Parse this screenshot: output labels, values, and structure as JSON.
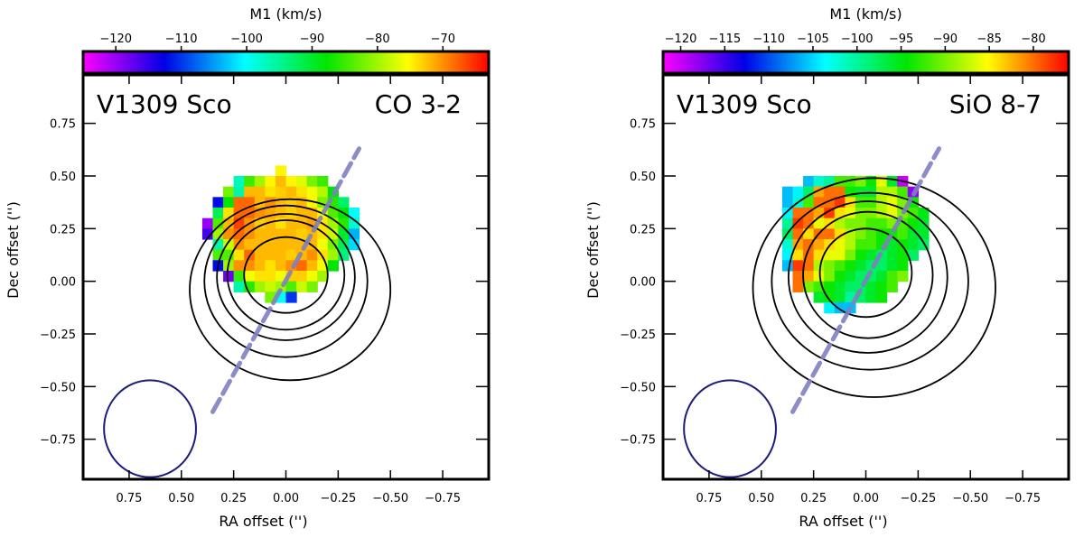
{
  "chart_data": [
    {
      "type": "heatmap",
      "panel_label": "V1309 Sco",
      "line_label": "CO 3-2",
      "xlabel": "RA offset ('')",
      "ylabel": "Dec offset ('')",
      "colorbar_label": "M1 (km/s)",
      "colorbar_range": [
        -125,
        -63
      ],
      "colorbar_ticks": [
        -120,
        -110,
        -100,
        -90,
        -80,
        -70
      ],
      "xlim": [
        0.97,
        -0.97
      ],
      "ylim": [
        -0.94,
        0.98
      ],
      "xticks": [
        0.75,
        0.5,
        0.25,
        0.0,
        -0.25,
        -0.5,
        -0.75
      ],
      "yticks": [
        -0.75,
        -0.5,
        -0.25,
        0.0,
        0.25,
        0.5,
        0.75
      ],
      "pixel_size": 0.05,
      "pixel_grid": {
        "x_start": 0.475,
        "y_start": 0.525,
        "rows": [
          [
            null,
            null,
            null,
            null,
            null,
            null,
            null,
            null,
            null,
            -75,
            null,
            null,
            null,
            null,
            null,
            null,
            null,
            null
          ],
          [
            null,
            null,
            null,
            null,
            null,
            -97,
            -85,
            -80,
            -75,
            -72,
            -75,
            -77,
            -82,
            -85,
            null,
            null,
            null,
            null
          ],
          [
            null,
            null,
            null,
            null,
            -82,
            -96,
            -72,
            -72,
            -74,
            -73,
            -72,
            -74,
            -76,
            -79,
            -88,
            null,
            null,
            null
          ],
          [
            null,
            null,
            null,
            -112,
            -88,
            -68,
            -68,
            -72,
            -70,
            -72,
            -73,
            -72,
            -75,
            -82,
            -86,
            -93,
            null,
            null
          ],
          [
            null,
            null,
            null,
            -92,
            -74,
            -68,
            -68,
            -70,
            -71,
            -72,
            -73,
            -72,
            -72,
            -76,
            -84,
            -88,
            -100,
            null
          ],
          [
            null,
            null,
            -120,
            -84,
            -72,
            -66,
            -70,
            -73,
            -72,
            -74,
            -72,
            -72,
            -71,
            -74,
            -80,
            -86,
            -98,
            null
          ],
          [
            null,
            null,
            -116,
            -80,
            -70,
            -68,
            -70,
            -72,
            -72,
            -72,
            -72,
            -73,
            -72,
            -74,
            -78,
            -90,
            -104,
            null
          ],
          [
            null,
            null,
            null,
            -96,
            -78,
            -70,
            -72,
            -72,
            -72,
            -72,
            -72,
            -72,
            -72,
            -76,
            -82,
            -92,
            -102,
            null
          ],
          [
            null,
            null,
            null,
            -84,
            -84,
            -74,
            -68,
            -72,
            -72,
            -72,
            -73,
            -72,
            -70,
            -74,
            -80,
            -94,
            null,
            null
          ],
          [
            null,
            null,
            null,
            -112,
            -80,
            -70,
            -70,
            -72,
            -74,
            -72,
            -70,
            -68,
            -72,
            -76,
            -88,
            null,
            null,
            null
          ],
          [
            null,
            null,
            null,
            null,
            -118,
            -85,
            -76,
            -74,
            -74,
            -76,
            -73,
            -73,
            -76,
            -80,
            null,
            null,
            null,
            null
          ],
          [
            null,
            null,
            null,
            null,
            null,
            -96,
            -86,
            -80,
            -78,
            -80,
            -84,
            -78,
            -82,
            null,
            null,
            null,
            null,
            null
          ],
          [
            null,
            null,
            null,
            null,
            null,
            null,
            null,
            null,
            -82,
            -100,
            -110,
            null,
            null,
            null,
            null,
            null,
            null,
            null
          ]
        ]
      },
      "contours": [
        {
          "cx": -0.02,
          "cy": -0.04,
          "rx": 0.48,
          "ry": 0.43
        },
        {
          "cx": 0.0,
          "cy": 0.0,
          "rx": 0.39,
          "ry": 0.36
        },
        {
          "cx": 0.0,
          "cy": 0.02,
          "rx": 0.33,
          "ry": 0.3
        },
        {
          "cx": 0.0,
          "cy": 0.03,
          "rx": 0.28,
          "ry": 0.26
        },
        {
          "cx": 0.0,
          "cy": 0.03,
          "rx": 0.2,
          "ry": 0.18
        }
      ],
      "axis_line": {
        "x1": 0.35,
        "y1": -0.62,
        "x2": -0.35,
        "y2": 0.63,
        "color": "#8080c0"
      },
      "beam": {
        "cx": 0.65,
        "cy": -0.7,
        "rx": 0.22,
        "ry": 0.23,
        "color": "#1c1c7c"
      }
    },
    {
      "type": "heatmap",
      "panel_label": "V1309 Sco",
      "line_label": "SiO 8-7",
      "xlabel": "RA offset ('')",
      "ylabel": "Dec offset ('')",
      "colorbar_label": "M1 (km/s)",
      "colorbar_range": [
        -122,
        -76
      ],
      "colorbar_ticks": [
        -120,
        -115,
        -110,
        -105,
        -100,
        -95,
        -90,
        -85,
        -80
      ],
      "xlim": [
        0.97,
        -0.97
      ],
      "ylim": [
        -0.94,
        0.98
      ],
      "xticks": [
        0.75,
        0.5,
        0.25,
        0.0,
        -0.25,
        -0.5,
        -0.75
      ],
      "yticks": [
        -0.75,
        -0.5,
        -0.25,
        0.0,
        0.25,
        0.5,
        0.75
      ],
      "pixel_size": 0.05,
      "pixel_grid": {
        "x_start": 0.475,
        "y_start": 0.475,
        "rows": [
          [
            null,
            null,
            null,
            null,
            -106,
            -102,
            -100,
            -92,
            -92,
            -90,
            -94,
            -86,
            -96,
            -120,
            null,
            null,
            null,
            null
          ],
          [
            null,
            null,
            -106,
            -104,
            -98,
            -82,
            -80,
            -80,
            -94,
            -96,
            -96,
            -88,
            -88,
            -92,
            -118,
            null,
            null,
            null
          ],
          [
            null,
            null,
            -106,
            -102,
            -92,
            -80,
            -80,
            -78,
            -84,
            -92,
            -92,
            -88,
            -86,
            -90,
            -94,
            null,
            null,
            null
          ],
          [
            null,
            null,
            -104,
            -80,
            -80,
            -82,
            -78,
            -84,
            -86,
            -90,
            -90,
            -88,
            -86,
            -90,
            -92,
            -95,
            null,
            null
          ],
          [
            null,
            null,
            -100,
            -78,
            -80,
            -86,
            -84,
            -88,
            -90,
            -90,
            -92,
            -92,
            -90,
            -92,
            -94,
            -96,
            null,
            null
          ],
          [
            null,
            null,
            -98,
            -80,
            -84,
            -80,
            -80,
            -84,
            -88,
            -90,
            -92,
            -94,
            -94,
            -92,
            -96,
            -96,
            null,
            null
          ],
          [
            null,
            null,
            -102,
            -82,
            -80,
            -82,
            -84,
            -86,
            -88,
            -92,
            -92,
            -94,
            -96,
            -94,
            -96,
            -98,
            null,
            null
          ],
          [
            null,
            null,
            -104,
            -84,
            -80,
            -84,
            -86,
            -86,
            -90,
            -94,
            -96,
            -98,
            -96,
            -94,
            -98,
            null,
            null,
            null
          ],
          [
            null,
            null,
            -106,
            -78,
            -80,
            -88,
            -90,
            -92,
            -94,
            -96,
            -98,
            -98,
            -96,
            -94,
            null,
            null,
            null,
            null
          ],
          [
            null,
            null,
            null,
            -80,
            -82,
            -86,
            -90,
            -94,
            -96,
            -98,
            -98,
            -96,
            -92,
            -90,
            null,
            null,
            null,
            null
          ],
          [
            null,
            null,
            null,
            -80,
            -90,
            -92,
            -94,
            -96,
            -98,
            -98,
            -96,
            -94,
            -92,
            null,
            null,
            null,
            null,
            null
          ],
          [
            null,
            null,
            null,
            null,
            null,
            -96,
            -94,
            -96,
            -100,
            -98,
            -96,
            -94,
            null,
            null,
            null,
            null,
            null,
            null
          ],
          [
            null,
            null,
            null,
            null,
            null,
            null,
            -104,
            -106,
            -106,
            null,
            null,
            null,
            null,
            null,
            null,
            null,
            null,
            null
          ]
        ]
      },
      "contours": [
        {
          "cx": -0.04,
          "cy": -0.03,
          "rx": 0.58,
          "ry": 0.52
        },
        {
          "cx": -0.02,
          "cy": 0.0,
          "rx": 0.47,
          "ry": 0.42
        },
        {
          "cx": -0.01,
          "cy": 0.02,
          "rx": 0.38,
          "ry": 0.36
        },
        {
          "cx": -0.01,
          "cy": 0.03,
          "rx": 0.31,
          "ry": 0.3
        },
        {
          "cx": 0.0,
          "cy": 0.04,
          "rx": 0.22,
          "ry": 0.21
        }
      ],
      "axis_line": {
        "x1": 0.35,
        "y1": -0.62,
        "x2": -0.35,
        "y2": 0.63,
        "color": "#8080c0"
      },
      "beam": {
        "cx": 0.65,
        "cy": -0.7,
        "rx": 0.22,
        "ry": 0.23,
        "color": "#1c1c7c"
      }
    }
  ]
}
